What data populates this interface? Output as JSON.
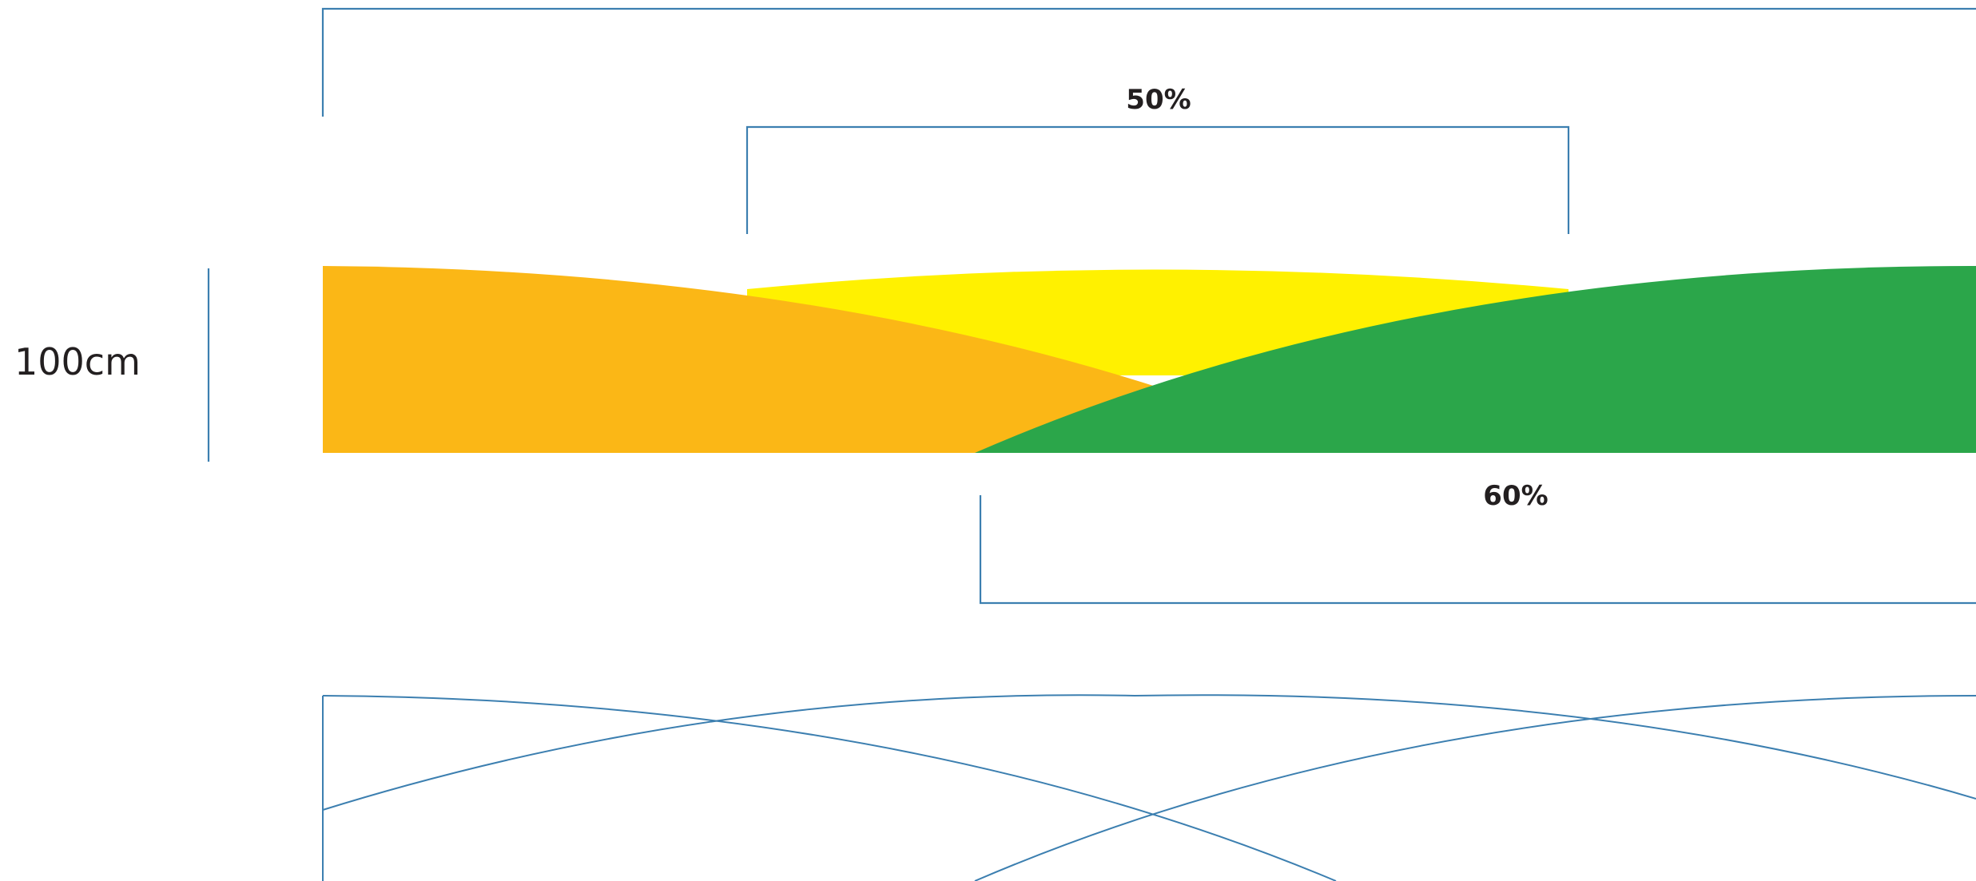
{
  "labels": {
    "height_label": "100cm",
    "overlap_top_label": "50%",
    "overlap_bottom_label": "60%"
  },
  "colors": {
    "orange_layer": "#fbb716",
    "yellow_layer": "#fff100",
    "green_layer": "#2ba64a",
    "line": "#3c7fb0",
    "text": "#231f20",
    "background": "#ffffff"
  }
}
